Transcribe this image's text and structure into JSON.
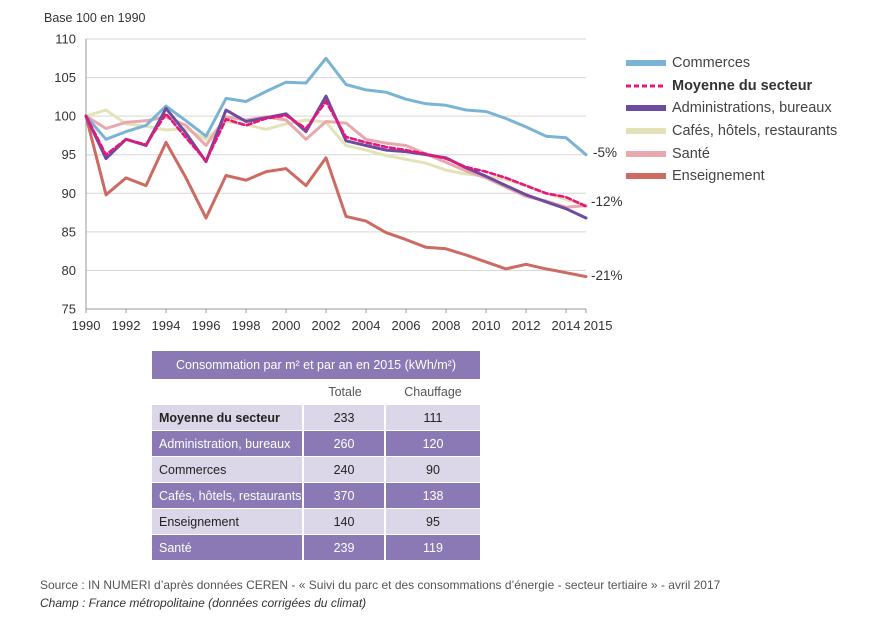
{
  "chart_data": {
    "type": "line",
    "title": "",
    "ylabel": "Base 100 en 1990",
    "xlabel": "",
    "xlim": [
      1990,
      2015
    ],
    "ylim": [
      75,
      110
    ],
    "x_ticks": [
      1990,
      1992,
      1994,
      1996,
      1998,
      2000,
      2002,
      2004,
      2006,
      2008,
      2010,
      2012,
      2014,
      2015
    ],
    "x_tick_labels": [
      "1990",
      "1992",
      "1994",
      "1996",
      "1998",
      "2000",
      "2002",
      "2004",
      "2006",
      "2008",
      "2010",
      "2012",
      "2014",
      "2015"
    ],
    "y_ticks": [
      75,
      80,
      85,
      90,
      95,
      100,
      105,
      110
    ],
    "y_tick_labels": [
      "75",
      "80",
      "85",
      "90",
      "95",
      "100",
      "105",
      "110"
    ],
    "grid": "horizontal",
    "legend_position": "right",
    "x": [
      1990,
      1991,
      1992,
      1993,
      1994,
      1995,
      1996,
      1997,
      1998,
      1999,
      2000,
      2001,
      2002,
      2003,
      2004,
      2005,
      2006,
      2007,
      2008,
      2009,
      2010,
      2011,
      2012,
      2013,
      2014,
      2015
    ],
    "series": [
      {
        "name": "Commerces",
        "color": "#7ab4d4",
        "style": "solid",
        "values": [
          100,
          97.0,
          98.0,
          98.8,
          101.3,
          99.4,
          97.4,
          102.3,
          101.9,
          103.2,
          104.4,
          104.3,
          107.5,
          104.1,
          103.4,
          103.1,
          102.2,
          101.6,
          101.4,
          100.8,
          100.6,
          99.7,
          98.6,
          97.4,
          97.2,
          95.0
        ]
      },
      {
        "name": "Moyenne du secteur",
        "color": "#e8157b",
        "style": "dashed",
        "values": [
          100,
          95.0,
          97.0,
          96.3,
          100.3,
          97.2,
          94.2,
          99.6,
          98.8,
          99.7,
          100.1,
          98.4,
          101.9,
          97.3,
          96.6,
          96.0,
          95.6,
          95.1,
          94.5,
          93.4,
          92.8,
          92.0,
          91.0,
          90.0,
          89.5,
          88.3
        ]
      },
      {
        "name": "Administrations, bureaux",
        "color": "#6d4c9d",
        "style": "solid",
        "values": [
          100,
          94.5,
          97.0,
          96.2,
          101.0,
          97.8,
          94.1,
          100.8,
          99.3,
          99.8,
          100.3,
          98.0,
          102.6,
          96.8,
          96.2,
          95.6,
          95.4,
          95.0,
          94.6,
          93.3,
          92.2,
          91.0,
          89.8,
          88.9,
          88.0,
          86.8
        ]
      },
      {
        "name": "Cafés, hôtels, restaurants",
        "color": "#e4e3b7",
        "style": "solid",
        "values": [
          100,
          100.8,
          99.0,
          98.7,
          98.2,
          98.4,
          97.0,
          99.3,
          98.9,
          98.3,
          99.0,
          99.5,
          99.2,
          96.2,
          95.6,
          94.9,
          94.4,
          93.9,
          93.0,
          92.5,
          92.2,
          91.8,
          91.0,
          90.0,
          89.2,
          88.5
        ]
      },
      {
        "name": "Santé",
        "color": "#e8a8ad",
        "style": "solid",
        "values": [
          100,
          98.4,
          99.2,
          99.4,
          99.9,
          98.8,
          96.2,
          99.9,
          99.5,
          99.9,
          99.5,
          97.0,
          99.3,
          99.1,
          97.0,
          96.5,
          96.2,
          95.1,
          94.0,
          92.9,
          92.0,
          90.8,
          89.6,
          89.0,
          88.2,
          88.4
        ]
      },
      {
        "name": "Enseignement",
        "color": "#cd6a62",
        "style": "solid",
        "values": [
          100,
          89.8,
          92.0,
          91.0,
          96.6,
          92.0,
          86.8,
          92.3,
          91.7,
          92.8,
          93.2,
          91.0,
          94.6,
          87.0,
          86.4,
          84.9,
          84.0,
          83.0,
          82.8,
          82.0,
          81.1,
          80.2,
          80.8,
          80.2,
          79.7,
          79.2
        ]
      }
    ],
    "annotations": [
      {
        "text": "-5%",
        "series": "Commerces"
      },
      {
        "text": "-12%",
        "series": "Moyenne du secteur"
      },
      {
        "text": "-21%",
        "series": "Enseignement"
      }
    ],
    "table": {
      "title": "Consommation par m² et par an en 2015 (kWh/m²)",
      "columns": [
        "Totale",
        "Chauffage"
      ],
      "rows": [
        {
          "label": "Moyenne du secteur",
          "totale": "233",
          "chauffage": "111"
        },
        {
          "label": "Administration, bureaux",
          "totale": "260",
          "chauffage": "120"
        },
        {
          "label": "Commerces",
          "totale": "240",
          "chauffage": "90"
        },
        {
          "label": "Cafés, hôtels, restaurants",
          "totale": "370",
          "chauffage": "138"
        },
        {
          "label": "Enseignement",
          "totale": "140",
          "chauffage": "95"
        },
        {
          "label": "Santé",
          "totale": "239",
          "chauffage": "119"
        }
      ]
    }
  },
  "footer": {
    "source": "Source : IN NUMERI d’après données CEREN - « Suivi du parc et des consommations d’énergie - secteur tertiaire » - avril 2017",
    "champ": "Champ : France métropolitaine (données corrigées du climat)"
  }
}
